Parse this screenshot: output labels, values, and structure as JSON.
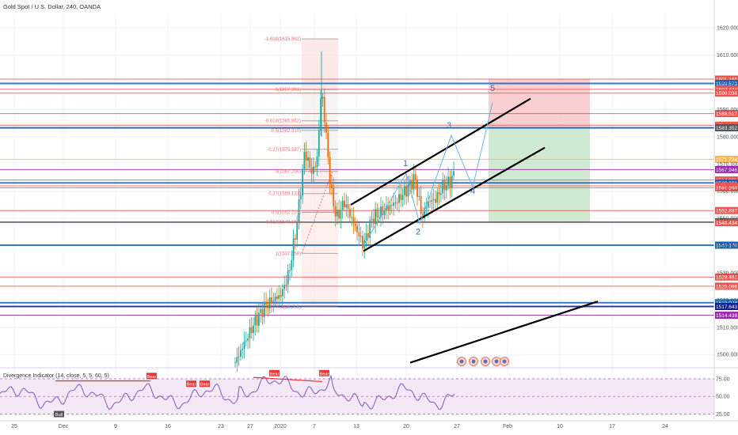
{
  "chart_data": {
    "type": "candlestick",
    "title": "Gold Spot / U.S. Dollar, 240, OANDA",
    "price_axis": {
      "range": [
        1496,
        1625
      ],
      "ticks": [
        1500,
        1510,
        1520,
        1530,
        1540,
        1550,
        1560,
        1570,
        1580,
        1590,
        1600,
        1610,
        1620
      ],
      "tick_labels": [
        "1500.000",
        "1510.000",
        "1520.000",
        "1530.000",
        "1540.000",
        "1550.000",
        "1560.000",
        "1570.000",
        "1580.000",
        "1590.000",
        "1600.000",
        "1610.000",
        "1620.000"
      ]
    },
    "x_axis": {
      "labels": [
        "25",
        "Dec",
        "9",
        "16",
        "23",
        "27",
        "2020",
        "7",
        "13",
        "20",
        "27",
        "Feb",
        "10",
        "17",
        "24"
      ],
      "unit": "4h bars"
    },
    "price_tags": [
      {
        "value": 1601.165,
        "label": "1601.165",
        "color": "#ef5350"
      },
      {
        "value": 1599.573,
        "label": "1599.573",
        "color": "#1565c0"
      },
      {
        "value": 1597.424,
        "label": "1597.424",
        "color": "#ef5350"
      },
      {
        "value": 1596.036,
        "label": "1596.036",
        "color": "#ef5350"
      },
      {
        "value": 1588.517,
        "label": "1588.517",
        "color": "#ef5350"
      },
      {
        "value": 1584.241,
        "label": "1584.241",
        "color": "#ef5350"
      },
      {
        "value": 1583.273,
        "label": "1583.273",
        "color": "#1565c0"
      },
      {
        "value": 1583.352,
        "label": "1583.352",
        "color": "#555555"
      },
      {
        "value": 1571.724,
        "label": "1571.724",
        "color": "#ffb74d"
      },
      {
        "value": 1567.946,
        "label": "1567.946",
        "color": "#9c27b0"
      },
      {
        "value": 1564.111,
        "label": "1564.111",
        "color": "#ef5350"
      },
      {
        "value": 1563.031,
        "label": "1563.031",
        "color": "#1565c0"
      },
      {
        "value": 1561.947,
        "label": "1561.947",
        "color": "#ef5350"
      },
      {
        "value": 1561.26,
        "label": "1561.260",
        "color": "#ef5350"
      },
      {
        "value": 1552.887,
        "label": "1552.887",
        "color": "#ef5350"
      },
      {
        "value": 1548.707,
        "label": "1548.707",
        "color": "#333333"
      },
      {
        "value": 1548.434,
        "label": "1548.434",
        "color": "#ef5350"
      },
      {
        "value": 1540.17,
        "label": "1540.170",
        "color": "#1565c0"
      },
      {
        "value": 1528.481,
        "label": "1528.481",
        "color": "#ef5350"
      },
      {
        "value": 1525.096,
        "label": "1525.096",
        "color": "#ef5350"
      },
      {
        "value": 1519.028,
        "label": "1519.028",
        "color": "#1565c0"
      },
      {
        "value": 1517.643,
        "label": "1517.643",
        "color": "#0d1b8c"
      },
      {
        "value": 1514.438,
        "label": "1514.438",
        "color": "#9c27b0"
      }
    ],
    "fib_labels": [
      {
        "label": "-1.618(1615.963)",
        "value": 1615.963
      },
      {
        "label": "-1(1597.361)",
        "value": 1597.361
      },
      {
        "label": "-0.618(1585.862)",
        "value": 1585.862
      },
      {
        "label": "-0.5(1582.310)",
        "value": 1582.31
      },
      {
        "label": "-0.27(1575.387)",
        "value": 1575.387
      },
      {
        "label": "0(1567.266)",
        "value": 1567.266
      },
      {
        "label": "0.27(1559.132)",
        "value": 1559.132
      },
      {
        "label": "0.5(1552.220)",
        "value": 1552.22
      },
      {
        "label": "0.618(1548.667)",
        "value": 1548.667
      },
      {
        "label": "1(1537.158)",
        "value": 1537.158
      },
      {
        "label": "1(1517.5)",
        "value": 1517.5
      }
    ],
    "wave_labels": [
      {
        "label": "1",
        "value": 1568
      },
      {
        "label": "2",
        "value": 1547
      },
      {
        "label": "3",
        "value": 1582
      },
      {
        "label": "4",
        "value": 1562
      },
      {
        "label": "5",
        "value": 1596
      }
    ],
    "trade_zones": {
      "stop": [
        1583.273,
        1601.165
      ],
      "target": [
        1548.707,
        1583.273
      ]
    },
    "indicator": {
      "name": "Divergence Indicator (14, close, 5, 5, 60, 5)",
      "range": [
        20,
        85
      ],
      "ticks": [
        25,
        50,
        75
      ],
      "tick_labels": [
        "25.00",
        "50.00",
        "75.00"
      ],
      "signals": [
        {
          "label": "Bull"
        },
        {
          "label": "Bear"
        },
        {
          "label": "Bear"
        },
        {
          "label": "Bear"
        },
        {
          "label": "Bear"
        },
        {
          "label": "Bear"
        }
      ]
    },
    "grid": true
  }
}
